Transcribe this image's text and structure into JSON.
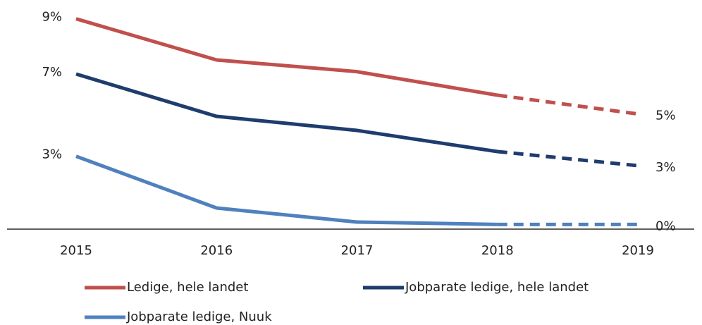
{
  "chart_data": {
    "type": "line",
    "categories": [
      "2015",
      "2016",
      "2017",
      "2018",
      "2019"
    ],
    "dashed_from_index": 3,
    "ylim": [
      0,
      9.75
    ],
    "series": [
      {
        "name": "Ledige, hele landet",
        "color": "#c0504d",
        "values": [
          8.95,
          7.2,
          6.7,
          5.7,
          4.9
        ],
        "value_labels": [
          "9%",
          null,
          null,
          null,
          "5%"
        ]
      },
      {
        "name": "Jobparate ledige, hele landet",
        "color": "#1f3c6e",
        "values": [
          6.6,
          4.8,
          4.2,
          3.3,
          2.7
        ],
        "value_labels": [
          "7%",
          null,
          null,
          null,
          "3%"
        ]
      },
      {
        "name": "Jobparate ledige, Nuuk",
        "color": "#4f81bd",
        "values": [
          3.1,
          0.9,
          0.3,
          0.2,
          0.2
        ],
        "value_labels": [
          "3%",
          null,
          null,
          null,
          "0%"
        ]
      }
    ]
  }
}
